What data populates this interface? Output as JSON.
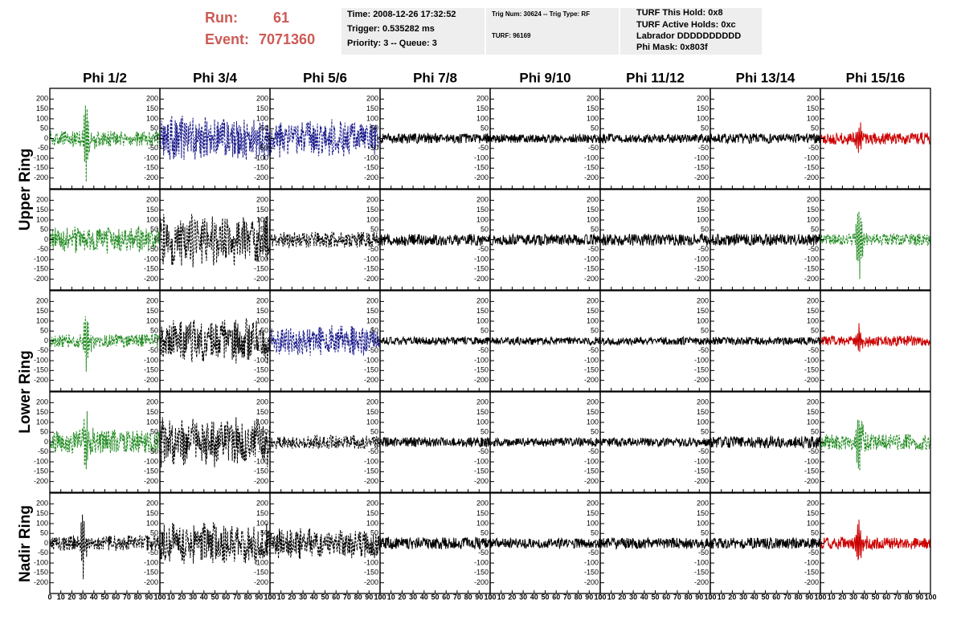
{
  "header": {
    "run_label": "Run:",
    "run": "61",
    "event_label": "Event:",
    "event": "7071360"
  },
  "info": [
    [
      "Time: 2008-12-26 17:32:52",
      "Trigger: 0.535282 ms",
      "Priority: 3 -- Queue: 3"
    ],
    [
      "Trig Num: 30624 -- Trig Type: RF",
      "TURF: 96169"
    ],
    [
      "TURF This Hold: 0x8",
      "TURF Active Holds: 0xc",
      "Labrador DDDDDDDDDD",
      "Phi Mask: 0x803f"
    ]
  ],
  "columns": [
    "Phi 1/2",
    "Phi 3/4",
    "Phi 5/6",
    "Phi 7/8",
    "Phi 9/10",
    "Phi 11/12",
    "Phi 13/14",
    "Phi 15/16"
  ],
  "rows": [
    "Upper Ring",
    "Lower Ring",
    "Nadir Ring"
  ],
  "ylim": [
    -230,
    230
  ],
  "yticks": [
    200,
    150,
    100,
    50,
    0,
    -50,
    -100,
    -150,
    -200
  ],
  "xlim": [
    0,
    100
  ],
  "xticks": [
    0,
    10,
    20,
    30,
    40,
    50,
    60,
    70,
    80,
    90,
    100
  ],
  "panels": [
    [
      {
        "color": "#228b22",
        "dashed": true,
        "noise": 40,
        "peak": 200,
        "at": 33
      },
      {
        "color": "#1a1a8c",
        "dashed": true,
        "noise": 120
      },
      {
        "color": "#1a1a8c",
        "dashed": true,
        "noise": 100
      },
      {
        "color": "#000000",
        "dashed": false,
        "noise": 25
      },
      {
        "color": "#000000",
        "dashed": false,
        "noise": 22
      },
      {
        "color": "#000000",
        "dashed": false,
        "noise": 22
      },
      {
        "color": "#000000",
        "dashed": false,
        "noise": 25
      },
      {
        "color": "#cc0000",
        "dashed": false,
        "noise": 30,
        "peak": 70,
        "at": 35
      }
    ],
    [
      {
        "color": "#228b22",
        "dashed": true,
        "noise": 70
      },
      {
        "color": "#000000",
        "dashed": true,
        "noise": 140
      },
      {
        "color": "#000000",
        "dashed": true,
        "noise": 40
      },
      {
        "color": "#000000",
        "dashed": false,
        "noise": 30
      },
      {
        "color": "#000000",
        "dashed": false,
        "noise": 28
      },
      {
        "color": "#000000",
        "dashed": false,
        "noise": 30
      },
      {
        "color": "#000000",
        "dashed": false,
        "noise": 30
      },
      {
        "color": "#228b22",
        "dashed": true,
        "noise": 30,
        "peak": 180,
        "at": 35
      }
    ],
    [
      {
        "color": "#228b22",
        "dashed": true,
        "noise": 35,
        "peak": 140,
        "at": 33
      },
      {
        "color": "#000000",
        "dashed": true,
        "noise": 120
      },
      {
        "color": "#1a1a8c",
        "dashed": true,
        "noise": 80
      },
      {
        "color": "#000000",
        "dashed": false,
        "noise": 20
      },
      {
        "color": "#000000",
        "dashed": false,
        "noise": 20
      },
      {
        "color": "#000000",
        "dashed": false,
        "noise": 20
      },
      {
        "color": "#000000",
        "dashed": false,
        "noise": 20
      },
      {
        "color": "#cc0000",
        "dashed": false,
        "noise": 25,
        "peak": 80,
        "at": 35
      }
    ],
    [
      {
        "color": "#228b22",
        "dashed": true,
        "noise": 60,
        "peak": 150,
        "at": 33
      },
      {
        "color": "#000000",
        "dashed": true,
        "noise": 130
      },
      {
        "color": "#000000",
        "dashed": true,
        "noise": 35
      },
      {
        "color": "#000000",
        "dashed": false,
        "noise": 25
      },
      {
        "color": "#000000",
        "dashed": false,
        "noise": 22
      },
      {
        "color": "#000000",
        "dashed": false,
        "noise": 22
      },
      {
        "color": "#000000",
        "dashed": false,
        "noise": 30
      },
      {
        "color": "#228b22",
        "dashed": true,
        "noise": 40,
        "peak": 170,
        "at": 35
      }
    ],
    [
      {
        "color": "#000000",
        "dashed": true,
        "noise": 40,
        "peak": 150,
        "at": 30
      },
      {
        "color": "#000000",
        "dashed": true,
        "noise": 110
      },
      {
        "color": "#000000",
        "dashed": true,
        "noise": 80
      },
      {
        "color": "#000000",
        "dashed": false,
        "noise": 30
      },
      {
        "color": "#000000",
        "dashed": false,
        "noise": 25
      },
      {
        "color": "#000000",
        "dashed": false,
        "noise": 28
      },
      {
        "color": "#000000",
        "dashed": false,
        "noise": 28
      },
      {
        "color": "#cc0000",
        "dashed": false,
        "noise": 30,
        "peak": 100,
        "at": 35
      }
    ]
  ]
}
